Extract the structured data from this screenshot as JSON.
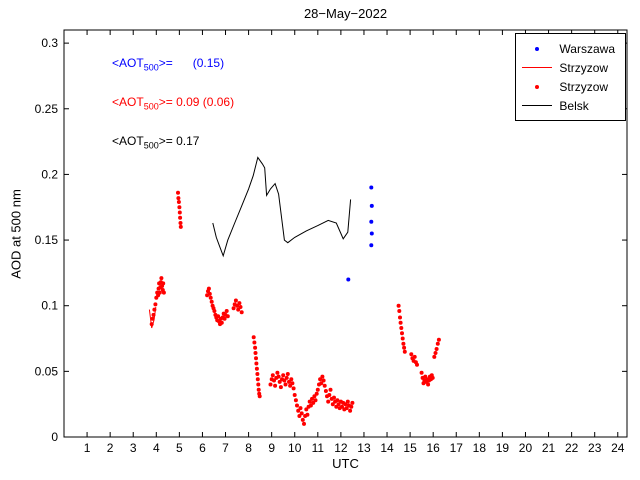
{
  "chart_data": {
    "type": "mixed",
    "title": "28−May−2022",
    "xlabel": "UTC",
    "ylabel": "AOD at 500 nm",
    "xlim": [
      0,
      24.4
    ],
    "ylim": [
      0,
      0.31
    ],
    "xticks": [
      1,
      2,
      3,
      4,
      5,
      6,
      7,
      8,
      9,
      10,
      11,
      12,
      13,
      14,
      15,
      16,
      17,
      18,
      19,
      20,
      21,
      22,
      23,
      24
    ],
    "yticks": [
      0,
      0.05,
      0.1,
      0.15,
      0.2,
      0.25,
      0.3
    ],
    "ytick_labels": [
      "0",
      "0.05",
      "0.1",
      "0.15",
      "0.2",
      "0.25",
      "0.3"
    ],
    "grid": false,
    "legend_position": "top-right",
    "series": [
      {
        "name": "Belsk",
        "type": "line",
        "color": "#000000",
        "points": [
          [
            6.45,
            0.163
          ],
          [
            6.6,
            0.152
          ],
          [
            6.75,
            0.145
          ],
          [
            6.9,
            0.138
          ],
          [
            7.1,
            0.15
          ],
          [
            7.4,
            0.163
          ],
          [
            7.7,
            0.176
          ],
          [
            8.0,
            0.189
          ],
          [
            8.2,
            0.199
          ],
          [
            8.4,
            0.213
          ],
          [
            8.6,
            0.208
          ],
          [
            8.7,
            0.205
          ],
          [
            8.78,
            0.184
          ],
          [
            8.95,
            0.189
          ],
          [
            9.15,
            0.193
          ],
          [
            9.3,
            0.185
          ],
          [
            9.55,
            0.15
          ],
          [
            9.7,
            0.148
          ],
          [
            10.0,
            0.152
          ],
          [
            10.5,
            0.157
          ],
          [
            11.0,
            0.161
          ],
          [
            11.45,
            0.165
          ],
          [
            11.8,
            0.163
          ],
          [
            12.0,
            0.155
          ],
          [
            12.1,
            0.151
          ],
          [
            12.3,
            0.156
          ],
          [
            12.42,
            0.181
          ]
        ]
      },
      {
        "name": "Strzyzow-line",
        "type": "line",
        "color": "#ff0000",
        "points": [
          [
            3.7,
            0.097
          ],
          [
            3.8,
            0.083
          ],
          [
            3.9,
            0.089
          ],
          [
            3.98,
            0.099
          ]
        ]
      },
      {
        "name": "Strzyzow",
        "type": "scatter",
        "color": "#ff0000",
        "marker_size": 2,
        "points": [
          [
            3.8,
            0.086
          ],
          [
            3.84,
            0.09
          ],
          [
            3.88,
            0.093
          ],
          [
            3.92,
            0.097
          ],
          [
            3.96,
            0.101
          ],
          [
            4.0,
            0.106
          ],
          [
            4.04,
            0.11
          ],
          [
            4.08,
            0.108
          ],
          [
            4.1,
            0.113
          ],
          [
            4.12,
            0.117
          ],
          [
            4.15,
            0.11
          ],
          [
            4.18,
            0.114
          ],
          [
            4.2,
            0.118
          ],
          [
            4.22,
            0.121
          ],
          [
            4.25,
            0.115
          ],
          [
            4.28,
            0.112
          ],
          [
            4.3,
            0.117
          ],
          [
            4.33,
            0.11
          ],
          [
            4.94,
            0.186
          ],
          [
            4.96,
            0.182
          ],
          [
            4.98,
            0.179
          ],
          [
            5.0,
            0.175
          ],
          [
            5.02,
            0.171
          ],
          [
            5.03,
            0.167
          ],
          [
            5.05,
            0.163
          ],
          [
            5.06,
            0.16
          ],
          [
            6.2,
            0.108
          ],
          [
            6.24,
            0.111
          ],
          [
            6.28,
            0.113
          ],
          [
            6.32,
            0.109
          ],
          [
            6.36,
            0.106
          ],
          [
            6.4,
            0.103
          ],
          [
            6.44,
            0.1
          ],
          [
            6.48,
            0.098
          ],
          [
            6.52,
            0.096
          ],
          [
            6.56,
            0.093
          ],
          [
            6.6,
            0.091
          ],
          [
            6.64,
            0.089
          ],
          [
            6.68,
            0.092
          ],
          [
            6.72,
            0.088
          ],
          [
            6.76,
            0.086
          ],
          [
            6.8,
            0.09
          ],
          [
            6.84,
            0.087
          ],
          [
            6.88,
            0.091
          ],
          [
            6.92,
            0.094
          ],
          [
            6.96,
            0.09
          ],
          [
            7.0,
            0.093
          ],
          [
            7.05,
            0.096
          ],
          [
            7.1,
            0.092
          ],
          [
            7.35,
            0.098
          ],
          [
            7.4,
            0.101
          ],
          [
            7.45,
            0.104
          ],
          [
            7.5,
            0.1
          ],
          [
            7.55,
            0.097
          ],
          [
            7.6,
            0.102
          ],
          [
            7.65,
            0.099
          ],
          [
            7.7,
            0.095
          ],
          [
            8.22,
            0.076
          ],
          [
            8.25,
            0.072
          ],
          [
            8.28,
            0.068
          ],
          [
            8.3,
            0.064
          ],
          [
            8.32,
            0.06
          ],
          [
            8.34,
            0.056
          ],
          [
            8.36,
            0.052
          ],
          [
            8.38,
            0.048
          ],
          [
            8.4,
            0.044
          ],
          [
            8.42,
            0.04
          ],
          [
            8.44,
            0.036
          ],
          [
            8.46,
            0.033
          ],
          [
            8.48,
            0.031
          ],
          [
            8.95,
            0.04
          ],
          [
            9.0,
            0.044
          ],
          [
            9.05,
            0.047
          ],
          [
            9.1,
            0.043
          ],
          [
            9.15,
            0.039
          ],
          [
            9.2,
            0.045
          ],
          [
            9.25,
            0.049
          ],
          [
            9.3,
            0.046
          ],
          [
            9.35,
            0.042
          ],
          [
            9.4,
            0.038
          ],
          [
            9.45,
            0.044
          ],
          [
            9.5,
            0.047
          ],
          [
            9.55,
            0.043
          ],
          [
            9.6,
            0.04
          ],
          [
            9.65,
            0.045
          ],
          [
            9.7,
            0.048
          ],
          [
            9.75,
            0.042
          ],
          [
            9.8,
            0.039
          ],
          [
            9.85,
            0.044
          ],
          [
            9.9,
            0.041
          ],
          [
            9.95,
            0.037
          ],
          [
            10.0,
            0.032
          ],
          [
            10.05,
            0.028
          ],
          [
            10.1,
            0.024
          ],
          [
            10.15,
            0.02
          ],
          [
            10.2,
            0.016
          ],
          [
            10.25,
            0.022
          ],
          [
            10.3,
            0.018
          ],
          [
            10.35,
            0.013
          ],
          [
            10.4,
            0.01
          ],
          [
            10.45,
            0.016
          ],
          [
            10.5,
            0.021
          ],
          [
            10.55,
            0.017
          ],
          [
            10.6,
            0.023
          ],
          [
            10.65,
            0.027
          ],
          [
            10.7,
            0.024
          ],
          [
            10.75,
            0.029
          ],
          [
            10.8,
            0.026
          ],
          [
            10.85,
            0.031
          ],
          [
            10.9,
            0.028
          ],
          [
            10.95,
            0.033
          ],
          [
            11.0,
            0.036
          ],
          [
            11.05,
            0.04
          ],
          [
            11.1,
            0.044
          ],
          [
            11.15,
            0.041
          ],
          [
            11.2,
            0.046
          ],
          [
            11.25,
            0.043
          ],
          [
            11.3,
            0.039
          ],
          [
            11.35,
            0.035
          ],
          [
            11.4,
            0.031
          ],
          [
            11.45,
            0.027
          ],
          [
            11.5,
            0.032
          ],
          [
            11.55,
            0.036
          ],
          [
            11.6,
            0.029
          ],
          [
            11.65,
            0.025
          ],
          [
            11.7,
            0.03
          ],
          [
            11.75,
            0.027
          ],
          [
            11.8,
            0.023
          ],
          [
            11.85,
            0.028
          ],
          [
            11.9,
            0.025
          ],
          [
            11.95,
            0.022
          ],
          [
            12.0,
            0.027
          ],
          [
            12.05,
            0.023
          ],
          [
            12.1,
            0.026
          ],
          [
            12.15,
            0.021
          ],
          [
            12.2,
            0.025
          ],
          [
            12.25,
            0.022
          ],
          [
            12.3,
            0.027
          ],
          [
            12.35,
            0.024
          ],
          [
            12.4,
            0.02
          ],
          [
            12.45,
            0.023
          ],
          [
            12.5,
            0.026
          ],
          [
            14.5,
            0.1
          ],
          [
            14.53,
            0.096
          ],
          [
            14.56,
            0.091
          ],
          [
            14.59,
            0.087
          ],
          [
            14.62,
            0.083
          ],
          [
            14.65,
            0.079
          ],
          [
            14.68,
            0.075
          ],
          [
            14.71,
            0.071
          ],
          [
            14.74,
            0.068
          ],
          [
            14.77,
            0.065
          ],
          [
            15.05,
            0.063
          ],
          [
            15.1,
            0.06
          ],
          [
            15.15,
            0.058
          ],
          [
            15.2,
            0.061
          ],
          [
            15.25,
            0.057
          ],
          [
            15.3,
            0.055
          ],
          [
            15.5,
            0.049
          ],
          [
            15.54,
            0.045
          ],
          [
            15.58,
            0.041
          ],
          [
            15.62,
            0.043
          ],
          [
            15.66,
            0.046
          ],
          [
            15.7,
            0.042
          ],
          [
            15.74,
            0.044
          ],
          [
            15.78,
            0.04
          ],
          [
            15.82,
            0.043
          ],
          [
            15.86,
            0.046
          ],
          [
            15.9,
            0.044
          ],
          [
            15.94,
            0.047
          ],
          [
            15.98,
            0.045
          ],
          [
            16.05,
            0.061
          ],
          [
            16.1,
            0.064
          ],
          [
            16.15,
            0.067
          ],
          [
            16.2,
            0.071
          ],
          [
            16.25,
            0.074
          ]
        ]
      },
      {
        "name": "Warszawa",
        "type": "scatter",
        "color": "#0000ff",
        "marker_size": 2,
        "points": [
          [
            12.32,
            0.12
          ],
          [
            13.32,
            0.146
          ],
          [
            13.34,
            0.155
          ],
          [
            13.32,
            0.164
          ],
          [
            13.34,
            0.176
          ],
          [
            13.32,
            0.19
          ]
        ]
      }
    ]
  },
  "annotations": [
    {
      "prefix": "<AOT",
      "sub": "500",
      "rest": ">=      (0.15)",
      "color": "#0000ff"
    },
    {
      "prefix": "<AOT",
      "sub": "500",
      "rest": ">= 0.09 (0.06)",
      "color": "#ff0000"
    },
    {
      "prefix": "<AOT",
      "sub": "500",
      "rest": ">= 0.17",
      "color": "#000000"
    }
  ],
  "legend": {
    "items": [
      {
        "label": "Warszawa",
        "marker": "dot",
        "color": "#0000ff"
      },
      {
        "label": "Strzyzow",
        "marker": "line",
        "color": "#ff0000"
      },
      {
        "label": "Strzyzow",
        "marker": "dot",
        "color": "#ff0000"
      },
      {
        "label": "Belsk",
        "marker": "line",
        "color": "#000000"
      }
    ]
  }
}
